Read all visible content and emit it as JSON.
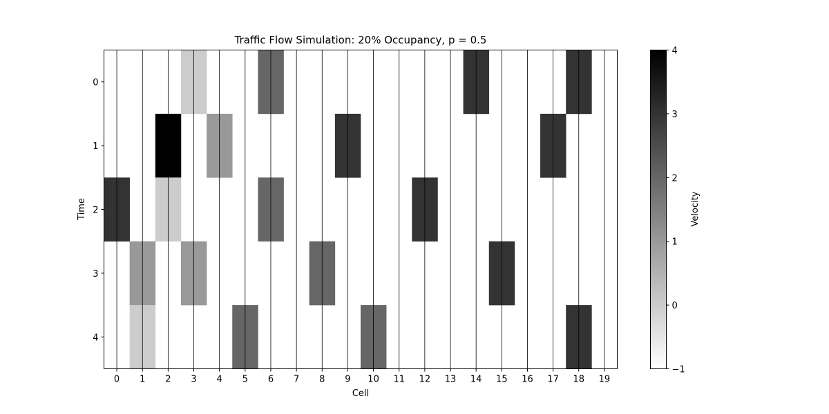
{
  "chart_data": {
    "type": "heatmap",
    "title": "Traffic Flow Simulation: 20% Occupancy, p = 0.5",
    "xlabel": "Cell",
    "ylabel": "Time",
    "x": [
      "0",
      "1",
      "2",
      "3",
      "4",
      "5",
      "6",
      "7",
      "8",
      "9",
      "10",
      "11",
      "12",
      "13",
      "14",
      "15",
      "16",
      "17",
      "18",
      "19"
    ],
    "y": [
      "0",
      "1",
      "2",
      "3",
      "4"
    ],
    "values": [
      [
        -1,
        -1,
        -1,
        0,
        -1,
        -1,
        2,
        -1,
        -1,
        -1,
        -1,
        -1,
        -1,
        -1,
        3,
        -1,
        -1,
        -1,
        3,
        -1
      ],
      [
        -1,
        -1,
        4,
        -1,
        1,
        -1,
        -1,
        -1,
        -1,
        3,
        -1,
        -1,
        -1,
        -1,
        -1,
        -1,
        -1,
        3,
        -1,
        -1
      ],
      [
        3,
        -1,
        0,
        -1,
        -1,
        -1,
        2,
        -1,
        -1,
        -1,
        -1,
        -1,
        3,
        -1,
        -1,
        -1,
        -1,
        -1,
        -1,
        -1
      ],
      [
        -1,
        1,
        -1,
        1,
        -1,
        -1,
        -1,
        -1,
        2,
        -1,
        -1,
        -1,
        -1,
        -1,
        -1,
        3,
        -1,
        -1,
        -1,
        -1
      ],
      [
        -1,
        0,
        -1,
        -1,
        -1,
        2,
        -1,
        -1,
        -1,
        -1,
        2,
        -1,
        -1,
        -1,
        -1,
        -1,
        -1,
        -1,
        3,
        -1
      ]
    ],
    "colormap": "gray_r",
    "vmin": -1,
    "vmax": 4,
    "gridlines": "vertical at cell centers",
    "colorbar": {
      "label": "Velocity",
      "ticks": [
        "4",
        "3",
        "2",
        "1",
        "0",
        "−1"
      ],
      "tick_values": [
        4,
        3,
        2,
        1,
        0,
        -1
      ],
      "placement": "right"
    }
  }
}
